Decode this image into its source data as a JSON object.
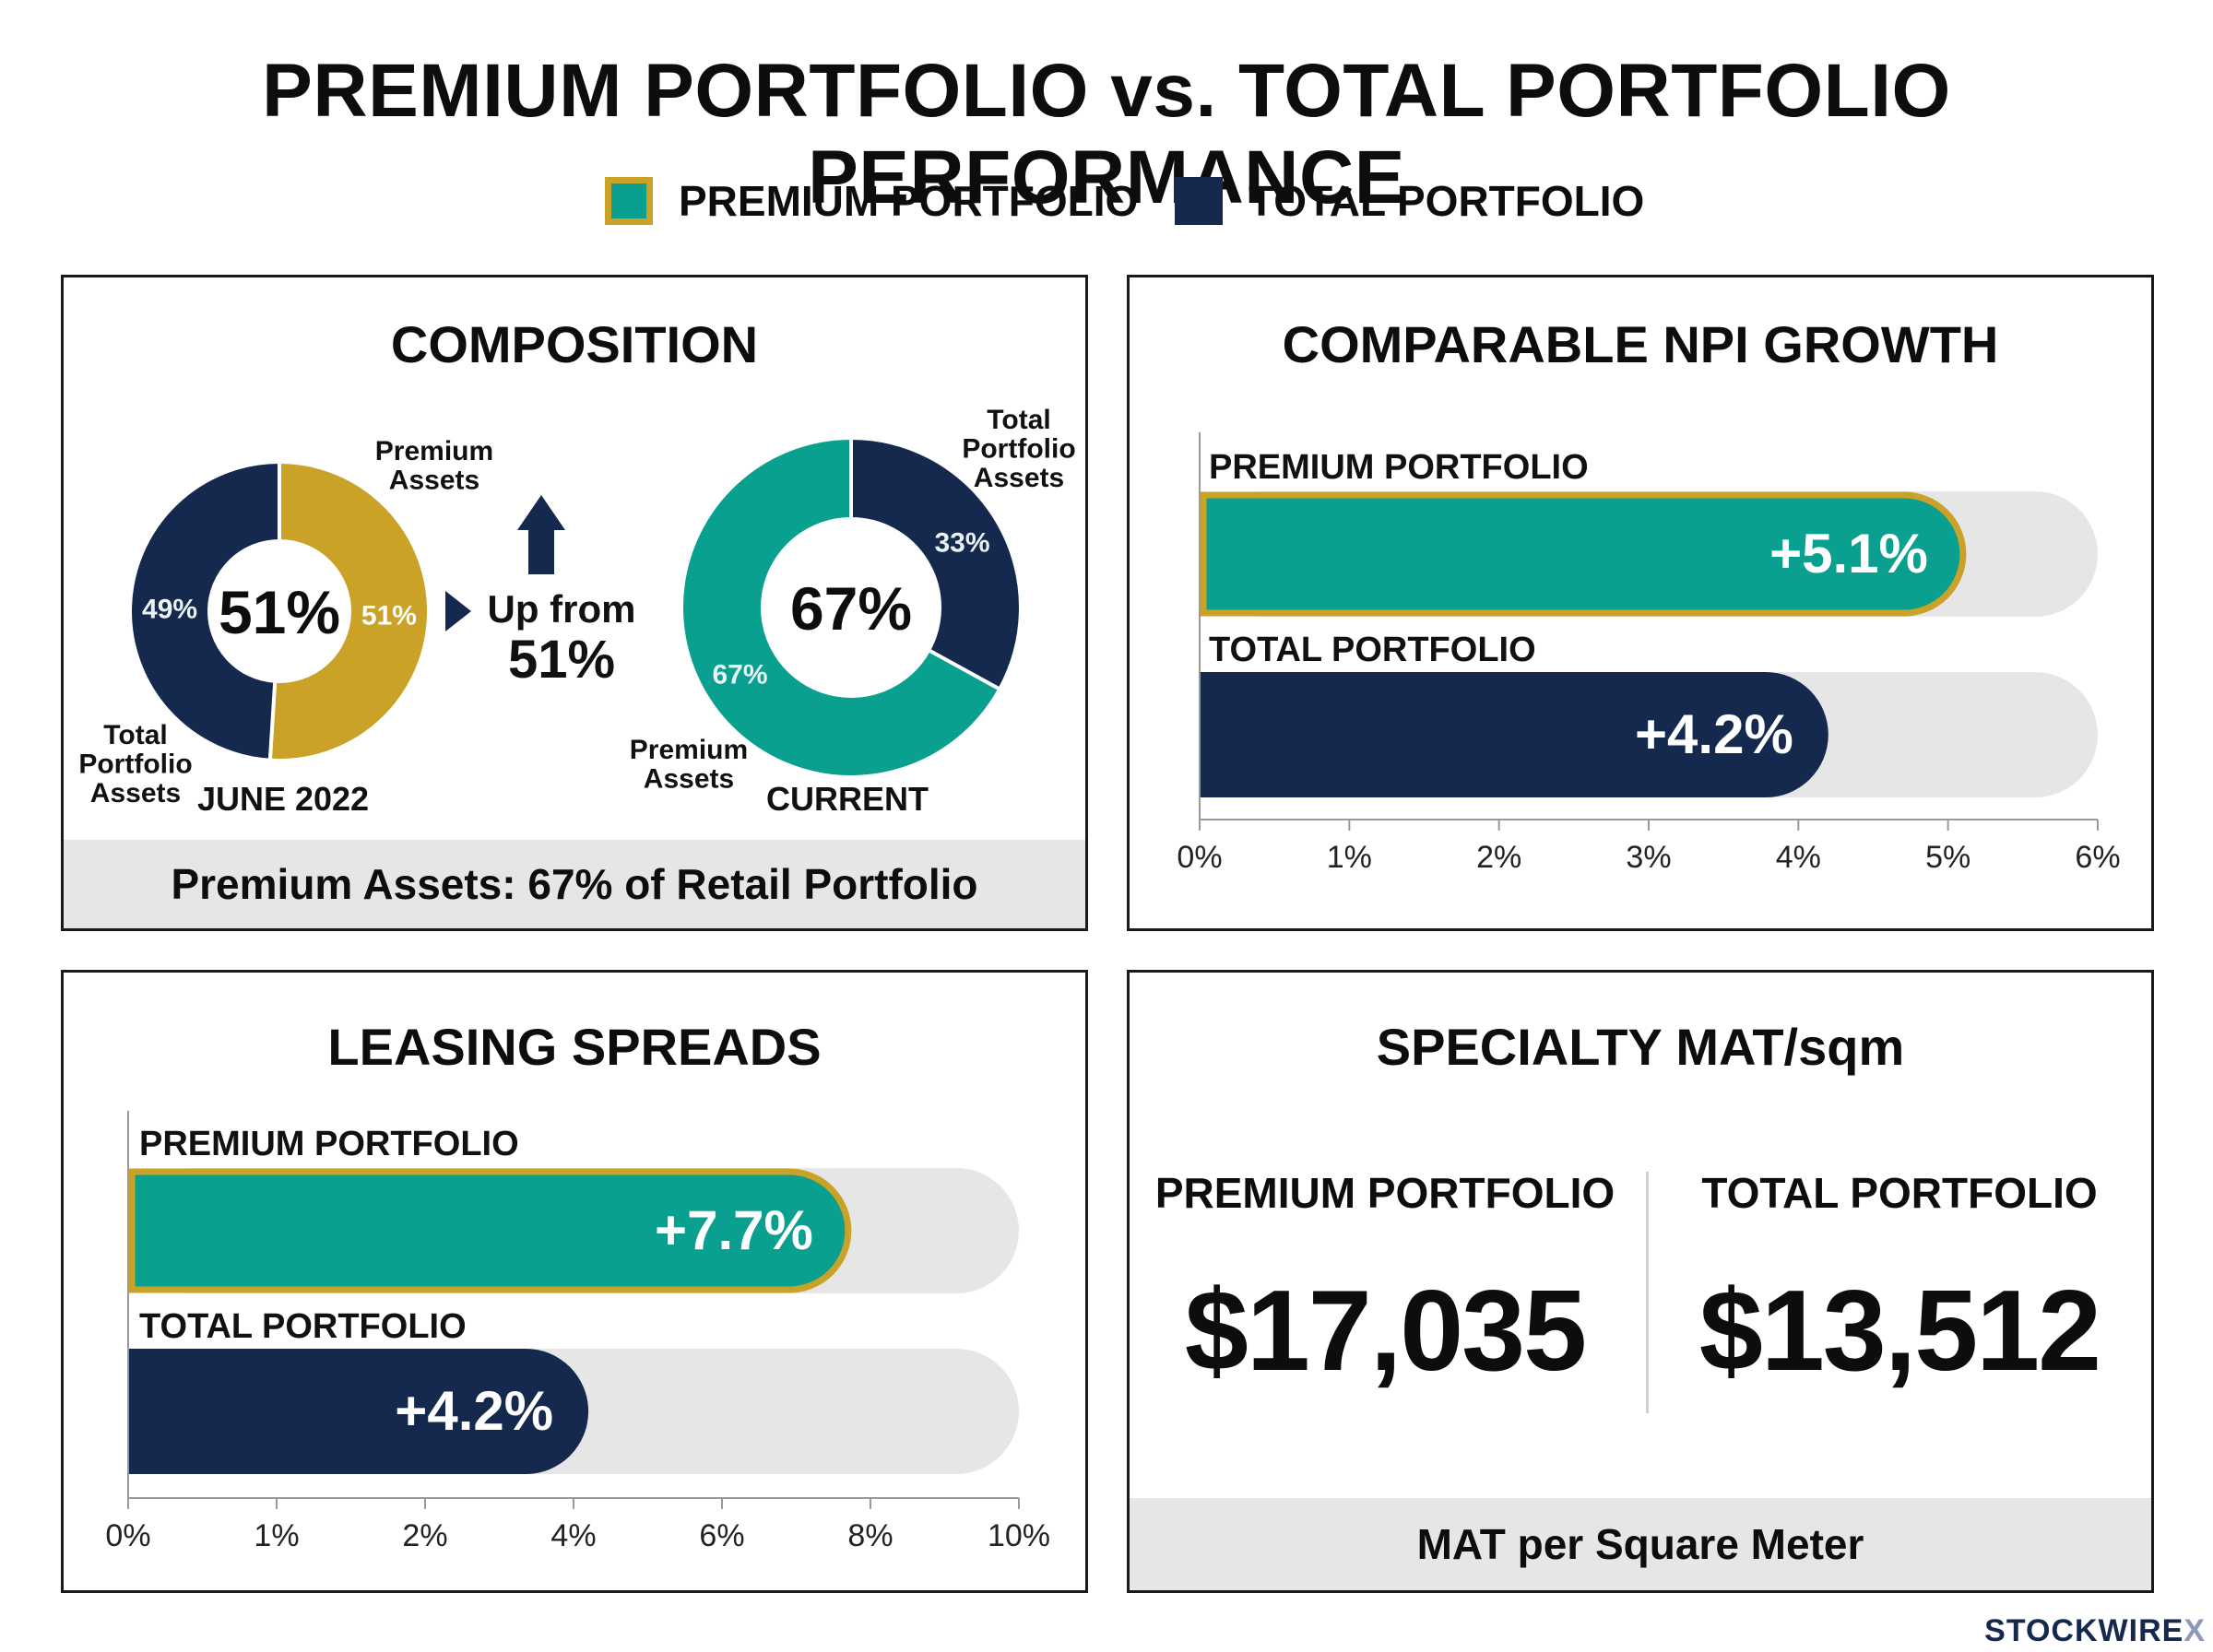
{
  "title": "PREMIUM PORTFOLIO vs. TOTAL PORTFOLIO PERFORMANCE",
  "legend": {
    "premium": "PREMIUM PORTFOLIO",
    "total": "TOTAL PORTFOLIO"
  },
  "colors": {
    "premium_fill": "#0aa08f",
    "premium_outline": "#c9a227",
    "gold": "#c9a227",
    "total": "#15294f",
    "track": "#e6e6e6"
  },
  "brand": {
    "name": "STOCKWIRE",
    "mark": "X"
  },
  "composition": {
    "title": "COMPOSITION",
    "arrow_text_1": "Up from",
    "arrow_text_2": "51%",
    "footer": "Premium Assets: 67% of Retail Portfolio"
  },
  "npi": {
    "title": "COMPARABLE NPI GROWTH"
  },
  "leasing": {
    "title": "LEASING SPREADS"
  },
  "specialty": {
    "title": "SPECIALTY MAT/sqm",
    "premium_label": "PREMIUM PORTFOLIO",
    "premium_value": "$17,035",
    "total_label": "TOTAL PORTFOLIO",
    "total_value": "$13,512",
    "footer": "MAT per Square Meter"
  },
  "chart_data": [
    {
      "type": "pie",
      "title": "JUNE 2022",
      "center_label": "51%",
      "slices": [
        {
          "name": "Premium Assets",
          "value": 51,
          "label": "51%",
          "color": "#c9a227"
        },
        {
          "name": "Total Portfolio Assets",
          "value": 49,
          "label": "49%",
          "color": "#15294f"
        }
      ]
    },
    {
      "type": "pie",
      "title": "CURRENT",
      "center_label": "67%",
      "slices": [
        {
          "name": "Total Portfolio Assets",
          "value": 33,
          "label": "33%",
          "color": "#15294f"
        },
        {
          "name": "Premium Assets",
          "value": 67,
          "label": "67%",
          "color": "#0aa08f"
        }
      ]
    },
    {
      "type": "bar",
      "orientation": "horizontal",
      "title": "COMPARABLE NPI GROWTH",
      "categories": [
        "PREMIUM PORTFOLIO",
        "TOTAL PORTFOLIO"
      ],
      "values": [
        5.1,
        4.2
      ],
      "value_labels": [
        "+5.1%",
        "+4.2%"
      ],
      "xlim": [
        0,
        6
      ],
      "ticks": [
        0,
        1,
        2,
        3,
        4,
        5,
        6
      ],
      "tick_labels": [
        "0%",
        "1%",
        "2%",
        "3%",
        "4%",
        "5%",
        "6%"
      ]
    },
    {
      "type": "bar",
      "orientation": "horizontal",
      "title": "LEASING SPREADS",
      "categories": [
        "PREMIUM PORTFOLIO",
        "TOTAL PORTFOLIO"
      ],
      "values": [
        7.7,
        4.2
      ],
      "value_labels": [
        "+7.7%",
        "+4.2%"
      ],
      "xlim": [
        0,
        10
      ],
      "ticks": [
        0,
        1,
        2,
        4,
        6,
        8,
        10
      ],
      "tick_labels": [
        "0%",
        "1%",
        "2%",
        "4%",
        "6%",
        "8%",
        "10%"
      ]
    }
  ]
}
